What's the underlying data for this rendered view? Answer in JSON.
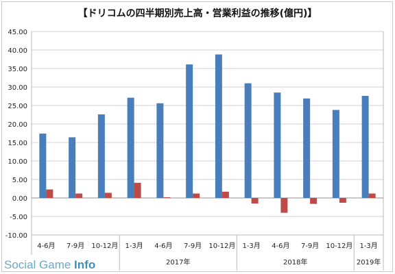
{
  "watermark": {
    "light": "Social Game ",
    "strong": "Info"
  },
  "chart_data": {
    "type": "bar",
    "title": "【ドリコムの四半期別売上高・営業利益の推移(億円)】",
    "categories": [
      "4-6月",
      "7-9月",
      "10-12月",
      "1-3月",
      "4-6月",
      "7-9月",
      "10-12月",
      "1-3月",
      "4-6月",
      "7-9月",
      "10-12月",
      "1-3月"
    ],
    "groups": [
      {
        "label": "2017年",
        "start": 3,
        "end": 6
      },
      {
        "label": "2018年",
        "start": 7,
        "end": 10
      },
      {
        "label": "2019年",
        "start": 11,
        "end": 11
      }
    ],
    "series": [
      {
        "values": [
          17.4,
          16.4,
          22.6,
          27.1,
          25.6,
          36.1,
          38.8,
          31.0,
          28.5,
          26.9,
          23.8,
          27.6
        ],
        "color": "#4a7ebb"
      },
      {
        "values": [
          2.3,
          1.2,
          1.4,
          4.1,
          0.2,
          1.2,
          1.7,
          -1.5,
          -4.0,
          -1.6,
          -1.3,
          1.2
        ],
        "color": "#be4b48"
      }
    ],
    "ylim": [
      -10,
      45
    ],
    "yticks": [
      "-10.00",
      "-5.00",
      "0.00",
      "5.00",
      "10.00",
      "15.00",
      "20.00",
      "25.00",
      "30.00",
      "35.00",
      "40.00",
      "45.00"
    ],
    "grid": true,
    "xlabel": "",
    "ylabel": ""
  }
}
